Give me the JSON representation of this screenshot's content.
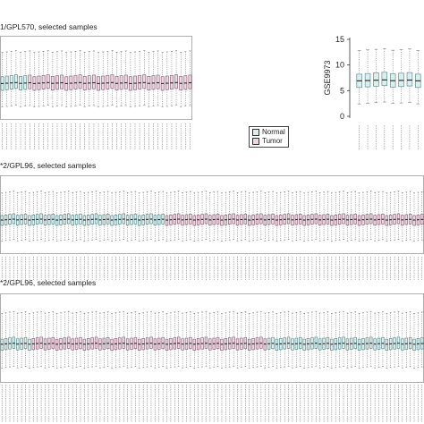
{
  "panels": [
    {
      "title": "1/GPL570, selected samples",
      "ylabel": "",
      "yticks": [],
      "n_boxes": 42,
      "groups": [
        {
          "group": "Normal",
          "count": 6
        },
        {
          "group": "Tumor",
          "count": 36
        }
      ],
      "median": 7.0,
      "q1": 5.8,
      "q3": 8.4,
      "ylim": [
        0,
        16
      ]
    },
    {
      "title": "GSE9973",
      "ylabel": "GSE9973",
      "yticks": [
        "0",
        "5",
        "10",
        "15"
      ],
      "n_boxes": 8,
      "groups": [
        {
          "group": "Normal",
          "count": 8
        }
      ],
      "median": 7.0,
      "q1": 5.8,
      "q3": 8.4,
      "ylim": [
        0,
        15
      ]
    },
    {
      "title": "*2/GPL96, selected samples",
      "ylabel": "",
      "yticks": [],
      "n_boxes": 108,
      "groups": [
        {
          "group": "Normal",
          "count": 42
        },
        {
          "group": "Tumor",
          "count": 66
        }
      ],
      "median": 7.0,
      "q1": 6.0,
      "q3": 8.0,
      "ylim": [
        0,
        16
      ]
    },
    {
      "title": "*2/GPL96, selected samples",
      "ylabel": "",
      "yticks": [],
      "n_boxes": 108,
      "groups": [
        {
          "group": "Normal",
          "count": 8
        },
        {
          "group": "Tumor",
          "count": 60
        },
        {
          "group": "Normal",
          "count": 40
        }
      ],
      "median": 7.0,
      "q1": 6.0,
      "q3": 8.0,
      "ylim": [
        0,
        16
      ]
    }
  ],
  "legend": [
    {
      "label": "Normal",
      "color": "#dcefef"
    },
    {
      "label": "Tumor",
      "color": "#f0d6e2"
    }
  ],
  "colors": {
    "normal_fill": "#dcefef",
    "normal_stroke": "#5f8f8f",
    "tumor_fill": "#f0d6e2",
    "tumor_stroke": "#8f6a7c"
  },
  "chart_data": [
    {
      "type": "box",
      "title": "1/GPL570, selected samples",
      "series": [
        {
          "name": "Normal",
          "count": 6,
          "median": 7.0,
          "q1": 5.8,
          "q3": 8.4
        },
        {
          "name": "Tumor",
          "count": 36,
          "median": 7.0,
          "q1": 5.8,
          "q3": 8.4
        }
      ]
    },
    {
      "type": "box",
      "ylabel": "GSE9973",
      "ylim": [
        0,
        15
      ],
      "yticks": [
        0,
        5,
        10,
        15
      ],
      "series": [
        {
          "name": "Normal",
          "count": 8,
          "median": 7.0,
          "q1": 5.8,
          "q3": 8.4
        }
      ]
    },
    {
      "type": "box",
      "title": "*2/GPL96, selected samples",
      "series": [
        {
          "name": "Normal",
          "count": 42,
          "median": 7.0,
          "q1": 6.0,
          "q3": 8.0
        },
        {
          "name": "Tumor",
          "count": 66,
          "median": 7.0,
          "q1": 6.0,
          "q3": 8.0
        }
      ]
    },
    {
      "type": "box",
      "title": "*2/GPL96, selected samples",
      "series": [
        {
          "name": "Normal",
          "count": 48,
          "median": 7.0,
          "q1": 6.0,
          "q3": 8.0
        },
        {
          "name": "Tumor",
          "count": 60,
          "median": 7.0,
          "q1": 6.0,
          "q3": 8.0
        }
      ]
    }
  ]
}
